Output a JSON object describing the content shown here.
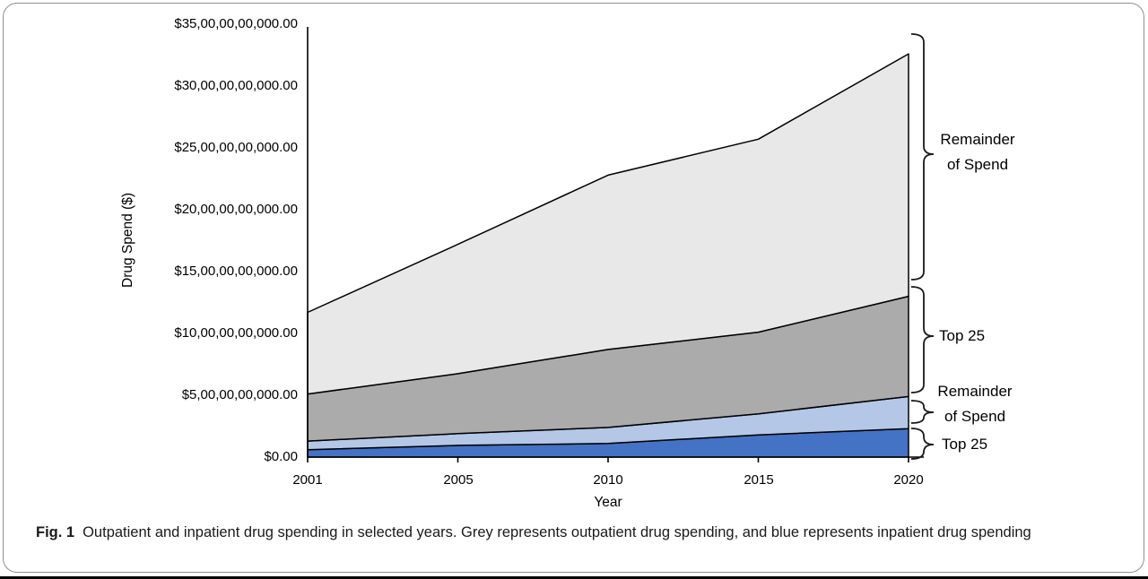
{
  "figure": {
    "caption_label": "Fig. 1",
    "caption_text": "Outpatient and inpatient drug spending in selected years. Grey represents outpatient drug spending, and blue represents inpatient drug spending"
  },
  "chart_data": {
    "type": "area",
    "stacked": true,
    "title": "",
    "xlabel": "Year",
    "ylabel": "Drug Spend ($)",
    "x_categories": [
      "2001",
      "2005",
      "2010",
      "2015",
      "2020"
    ],
    "x_axis_note": "categorical spacing (equal gaps between selected years)",
    "y_tick_labels": [
      "$0.00",
      "$5,00,00,00,000.00",
      "$10,00,00,00,000.00",
      "$15,00,00,00,000.00",
      "$20,00,00,00,000.00",
      "$25,00,00,00,000.00",
      "$30,00,00,00,000.00",
      "$35,00,00,00,000.00"
    ],
    "y_range_billions": [
      0,
      35
    ],
    "unit": "USD (labels shown with Indian digit grouping; values below in $ billions)",
    "grid": false,
    "legend": "right-side bracket annotations instead of legend",
    "series": [
      {
        "name": "Top 25 (inpatient)",
        "color": "#4472C4",
        "band_values": [
          0.6,
          0.95,
          1.1,
          1.8,
          2.3
        ],
        "cumulative_values": [
          0.6,
          0.95,
          1.1,
          1.8,
          2.3
        ]
      },
      {
        "name": "Remainder of Spend (inpatient)",
        "color": "#B4C7E7",
        "band_values": [
          0.7,
          0.95,
          1.3,
          1.7,
          2.6
        ],
        "cumulative_values": [
          1.3,
          1.9,
          2.4,
          3.5,
          4.9
        ]
      },
      {
        "name": "Top 25 (outpatient)",
        "color": "#ABABAB",
        "band_values": [
          3.8,
          4.85,
          6.3,
          6.6,
          8.1
        ],
        "cumulative_values": [
          5.1,
          6.75,
          8.7,
          10.1,
          13.0
        ]
      },
      {
        "name": "Remainder of Spend (outpatient)",
        "color": "#E8E8E8",
        "band_values": [
          6.6,
          10.45,
          14.1,
          15.6,
          19.6
        ],
        "cumulative_values": [
          11.7,
          17.2,
          22.8,
          25.7,
          32.6
        ]
      }
    ]
  },
  "annotations": [
    {
      "id": "outpatient-remainder",
      "lines": [
        "Remainder",
        "of Spend"
      ]
    },
    {
      "id": "outpatient-top25",
      "lines": [
        "Top 25"
      ]
    },
    {
      "id": "inpatient-remainder",
      "lines": [
        "Remainder",
        "of Spend"
      ]
    },
    {
      "id": "inpatient-top25",
      "lines": [
        "Top 25"
      ]
    }
  ]
}
